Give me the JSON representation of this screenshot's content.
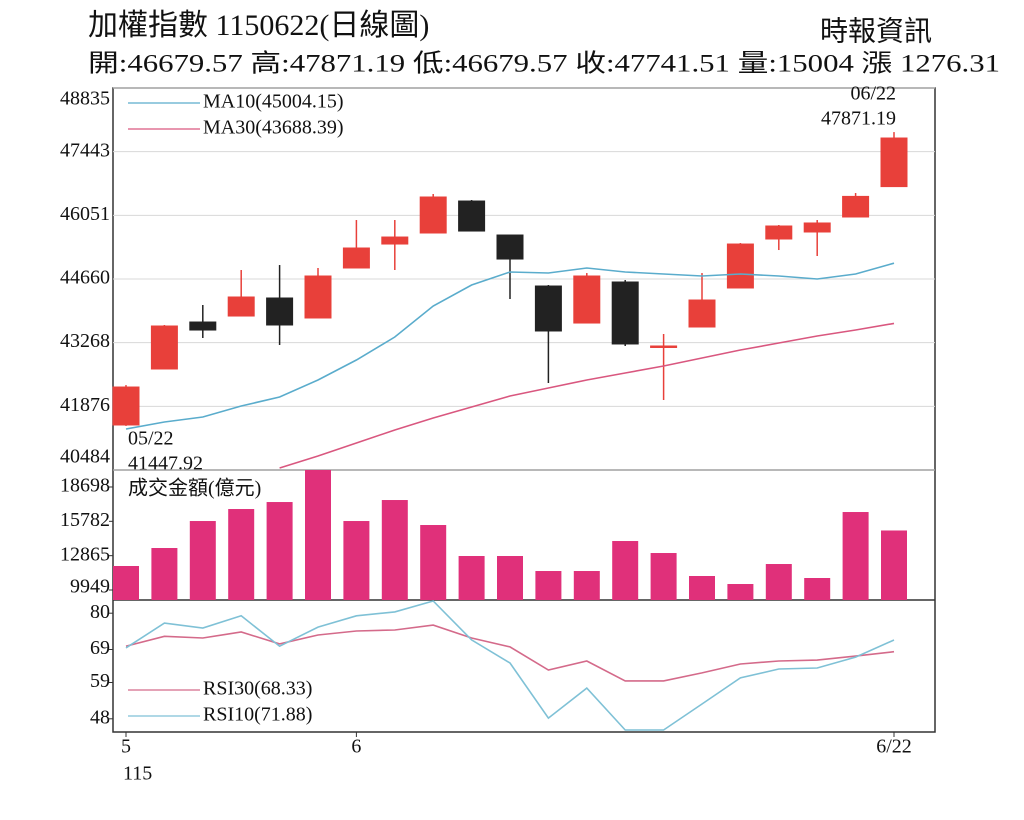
{
  "header": {
    "title": "加權指數 1150622(日線圖)",
    "source": "時報資訊",
    "stats": "開:46679.57 高:47871.19 低:46679.57 收:47741.51 量:15004 漲 1276.31"
  },
  "chart_data": [
    {
      "type": "candlestick",
      "open": [
        41468,
        42692,
        43719,
        43850,
        44244,
        43807,
        44900,
        45424,
        45665,
        46364,
        45621,
        44506,
        43697,
        44594,
        43173,
        43610,
        44463,
        45534,
        45687,
        46015,
        46679.57
      ],
      "high": [
        42340,
        43654,
        44091,
        44856,
        44965,
        44900,
        45949,
        45949,
        46518,
        46386,
        45621,
        44528,
        44790,
        44637,
        43457,
        44790,
        45446,
        45840,
        45949,
        46539,
        47871.19
      ],
      "low": [
        41447.92,
        42692,
        43370,
        43850,
        43217,
        43807,
        44900,
        44856,
        45665,
        45708,
        44222,
        42386,
        43697,
        43195,
        42014,
        43610,
        44463,
        45293,
        45162,
        46015,
        46679.57
      ],
      "close": [
        42298,
        43632,
        43544,
        44266,
        43654,
        44725,
        45337,
        45577,
        46452,
        45708,
        45096,
        43523,
        44725,
        43239,
        43195,
        44200,
        45424,
        45818,
        45884,
        46465.2,
        47741.51
      ],
      "up_color": "#e8403a",
      "down_color": "#222222",
      "ylim": [
        40484,
        48835
      ],
      "yticks": [
        40484,
        41876,
        43268,
        44660,
        46051,
        47443,
        48835
      ],
      "grid": true,
      "series": [
        {
          "name": "MA10(45004.15)",
          "color": "#5aaccc",
          "values": [
            41380,
            41533,
            41643,
            41883,
            42080,
            42451,
            42889,
            43392,
            44069,
            44528,
            44812,
            44790,
            44900,
            44812,
            44769,
            44725,
            44769,
            44725,
            44659,
            44769,
            45004.15
          ]
        },
        {
          "name": "MA30(43688.39)",
          "color": "#d9577f",
          "values": [
            null,
            null,
            null,
            null,
            40528,
            40790,
            41074,
            41358,
            41621,
            41861,
            42102,
            42277,
            42451,
            42604,
            42757,
            42932,
            43107,
            43260,
            43413,
            43545,
            43688.39
          ]
        }
      ],
      "annotations": [
        {
          "date": "05/22",
          "value": 41447.92
        },
        {
          "date": "06/22",
          "value": 47871.19
        }
      ]
    },
    {
      "type": "bar",
      "title": "成交金額(億元)",
      "color": "#e0307a",
      "values": [
        11987,
        13515,
        15807,
        16826,
        17420,
        20140,
        15807,
        17590,
        15468,
        12836,
        12836,
        11562,
        11562,
        14109,
        13090,
        11138,
        10458,
        12156,
        10968,
        16571,
        15004
      ],
      "ylim": [
        9100,
        20140
      ],
      "yticks": [
        9949,
        12865,
        15782,
        18698
      ]
    },
    {
      "type": "line",
      "series": [
        {
          "name": "RSI30(68.33)",
          "color": "#d46a8a",
          "values": [
            70,
            73,
            72.5,
            74.3,
            70.7,
            73.4,
            74.6,
            74.9,
            76.4,
            72.5,
            69.8,
            62.8,
            65.5,
            59.5,
            59.5,
            61.9,
            64.6,
            65.5,
            65.8,
            67,
            68.33
          ]
        },
        {
          "name": "RSI10(71.88)",
          "color": "#7fc1d6",
          "values": [
            69.5,
            77,
            75.5,
            79.2,
            70,
            75.8,
            79.2,
            80.4,
            83.7,
            71.9,
            64.9,
            48.2,
            57.3,
            44.6,
            44.6,
            52.5,
            60.4,
            63.1,
            63.4,
            66.7,
            71.88
          ]
        }
      ],
      "ylim": [
        44,
        84
      ],
      "yticks": [
        48,
        59,
        69,
        80
      ],
      "categories": [
        "5",
        null,
        null,
        null,
        null,
        null,
        "6",
        null,
        null,
        null,
        null,
        null,
        null,
        null,
        null,
        null,
        null,
        null,
        null,
        null,
        "6/22"
      ],
      "x_sublabel": "115"
    }
  ]
}
